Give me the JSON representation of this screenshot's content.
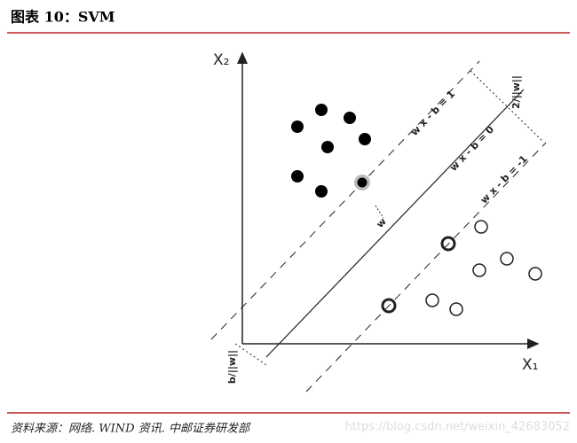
{
  "header": {
    "title": "图表 10：SVM"
  },
  "diagram": {
    "x2_label": "X₂",
    "x1_label": "X₁",
    "line_plus": "w x - b = 1",
    "line_zero": "w x - b = 0",
    "line_minus": "w x - b = -1",
    "normal": "w",
    "margin": "2/||w||",
    "offset": "b/||w||"
  },
  "footer": {
    "source": "资料来源：网络. WIND 资讯. 中邮证券研发部",
    "watermark": "https://blog.csdn.net/weixin_42683052"
  }
}
